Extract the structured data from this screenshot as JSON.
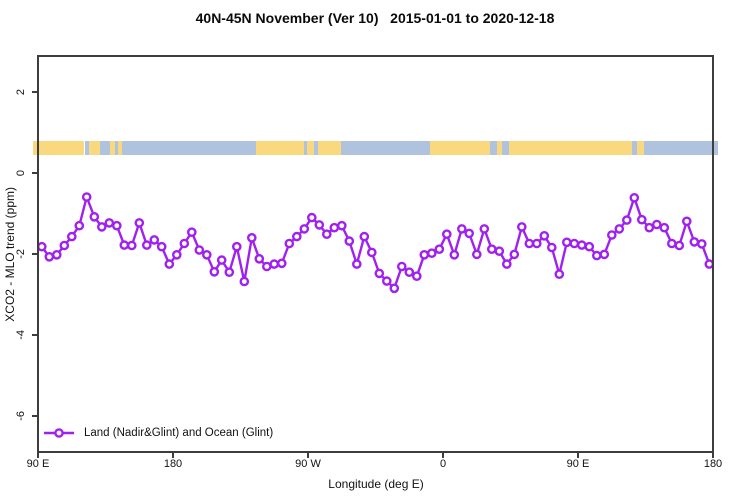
{
  "title": "40N-45N November (Ver 10)   2015-01-01 to 2020-12-18",
  "chart_data": {
    "type": "line",
    "title": "40N-45N November (Ver 10)   2015-01-01 to 2020-12-18",
    "xlabel": "Longitude (deg E)",
    "ylabel": "XCO2 - MLO trend (ppm)",
    "xlim": [
      90,
      540
    ],
    "ylim": [
      -6.9,
      2.9
    ],
    "grid": false,
    "x_ticks": [
      {
        "value": 90,
        "label": "90 E"
      },
      {
        "value": 180,
        "label": "180"
      },
      {
        "value": 270,
        "label": "90 W"
      },
      {
        "value": 360,
        "label": "0"
      },
      {
        "value": 450,
        "label": "90 E"
      },
      {
        "value": 540,
        "label": "180"
      }
    ],
    "y_ticks": [
      {
        "value": 2,
        "label": "2"
      },
      {
        "value": 0,
        "label": "0"
      },
      {
        "value": -2,
        "label": "-2"
      },
      {
        "value": -4,
        "label": "-4"
      },
      {
        "value": -6,
        "label": "-6"
      }
    ],
    "legend": {
      "position": "bottom-left",
      "entries": [
        {
          "label": "Land (Nadir&Glint) and Ocean (Glint)",
          "color": "#A020F0",
          "marker": "open-circle"
        }
      ]
    },
    "series": [
      {
        "name": "Land (Nadir&Glint) and Ocean (Glint)",
        "color": "#A020F0",
        "marker": "open-circle",
        "x": [
          92.5,
          97.5,
          102.5,
          107.5,
          112.5,
          117.5,
          122.5,
          127.5,
          132.5,
          137.5,
          142.5,
          147.5,
          152.5,
          157.5,
          162.5,
          167.5,
          172.5,
          177.5,
          182.5,
          187.5,
          192.5,
          197.5,
          202.5,
          207.5,
          212.5,
          217.5,
          222.5,
          227.5,
          232.5,
          237.5,
          242.5,
          247.5,
          252.5,
          257.5,
          262.5,
          267.5,
          272.5,
          277.5,
          282.5,
          287.5,
          292.5,
          297.5,
          302.5,
          307.5,
          312.5,
          317.5,
          322.5,
          327.5,
          332.5,
          337.5,
          342.5,
          347.5,
          352.5,
          357.5,
          362.5,
          367.5,
          372.5,
          377.5,
          382.5,
          387.5,
          392.5,
          397.5,
          402.5,
          407.5,
          412.5,
          417.5,
          422.5,
          427.5,
          432.5,
          437.5,
          442.5,
          447.5,
          452.5,
          457.5,
          462.5,
          467.5,
          472.5,
          477.5,
          482.5,
          487.5,
          492.5,
          497.5,
          502.5,
          507.5,
          512.5,
          517.5,
          522.5,
          527.5,
          532.5,
          537.5
        ],
        "y": [
          -1.82,
          -2.07,
          -2.02,
          -1.79,
          -1.57,
          -1.3,
          -0.59,
          -1.08,
          -1.33,
          -1.23,
          -1.3,
          -1.78,
          -1.79,
          -1.23,
          -1.78,
          -1.65,
          -1.82,
          -2.25,
          -2.02,
          -1.74,
          -1.46,
          -1.9,
          -2.02,
          -2.44,
          -2.15,
          -2.45,
          -1.82,
          -2.68,
          -1.6,
          -2.12,
          -2.31,
          -2.25,
          -2.23,
          -1.74,
          -1.57,
          -1.38,
          -1.1,
          -1.28,
          -1.51,
          -1.35,
          -1.3,
          -1.68,
          -2.25,
          -1.57,
          -1.96,
          -2.48,
          -2.67,
          -2.85,
          -2.31,
          -2.45,
          -2.55,
          -2.02,
          -1.98,
          -1.88,
          -1.51,
          -2.02,
          -1.38,
          -1.49,
          -2.01,
          -1.38,
          -1.88,
          -1.93,
          -2.25,
          -2.01,
          -1.33,
          -1.74,
          -1.74,
          -1.55,
          -1.84,
          -2.5,
          -1.71,
          -1.74,
          -1.78,
          -1.82,
          -2.04,
          -2.01,
          -1.53,
          -1.38,
          -1.16,
          -0.61,
          -1.15,
          -1.35,
          -1.27,
          -1.35,
          -1.74,
          -1.79,
          -1.19,
          -1.7,
          -1.75,
          -2.25
        ]
      }
    ],
    "land_ocean_band": {
      "description": "horizontal strip showing land (tan) vs ocean (blue) along longitude",
      "y_from": 0.45,
      "y_to": 0.8,
      "colors": {
        "land": "#FAD97E",
        "ocean": "#AFC3DE"
      },
      "segments": [
        {
          "from": 86.7,
          "to": 121,
          "type": "land"
        },
        {
          "from": 121,
          "to": 124,
          "type": "ocean"
        },
        {
          "from": 124,
          "to": 131,
          "type": "land"
        },
        {
          "from": 131,
          "to": 138,
          "type": "ocean"
        },
        {
          "from": 138,
          "to": 141,
          "type": "land"
        },
        {
          "from": 141,
          "to": 143.5,
          "type": "ocean"
        },
        {
          "from": 143.5,
          "to": 146,
          "type": "land"
        },
        {
          "from": 146,
          "to": 235,
          "type": "ocean"
        },
        {
          "from": 235,
          "to": 267,
          "type": "land"
        },
        {
          "from": 267,
          "to": 269.5,
          "type": "ocean"
        },
        {
          "from": 269.5,
          "to": 274,
          "type": "land"
        },
        {
          "from": 274,
          "to": 276.5,
          "type": "ocean"
        },
        {
          "from": 276.5,
          "to": 292,
          "type": "land"
        },
        {
          "from": 292,
          "to": 351,
          "type": "ocean"
        },
        {
          "from": 351,
          "to": 391,
          "type": "land"
        },
        {
          "from": 391,
          "to": 396,
          "type": "ocean"
        },
        {
          "from": 396,
          "to": 399,
          "type": "land"
        },
        {
          "from": 399,
          "to": 404,
          "type": "ocean"
        },
        {
          "from": 404,
          "to": 486,
          "type": "land"
        },
        {
          "from": 486,
          "to": 489,
          "type": "ocean"
        },
        {
          "from": 489,
          "to": 494,
          "type": "land"
        },
        {
          "from": 494,
          "to": 543.3,
          "type": "ocean"
        }
      ]
    }
  }
}
